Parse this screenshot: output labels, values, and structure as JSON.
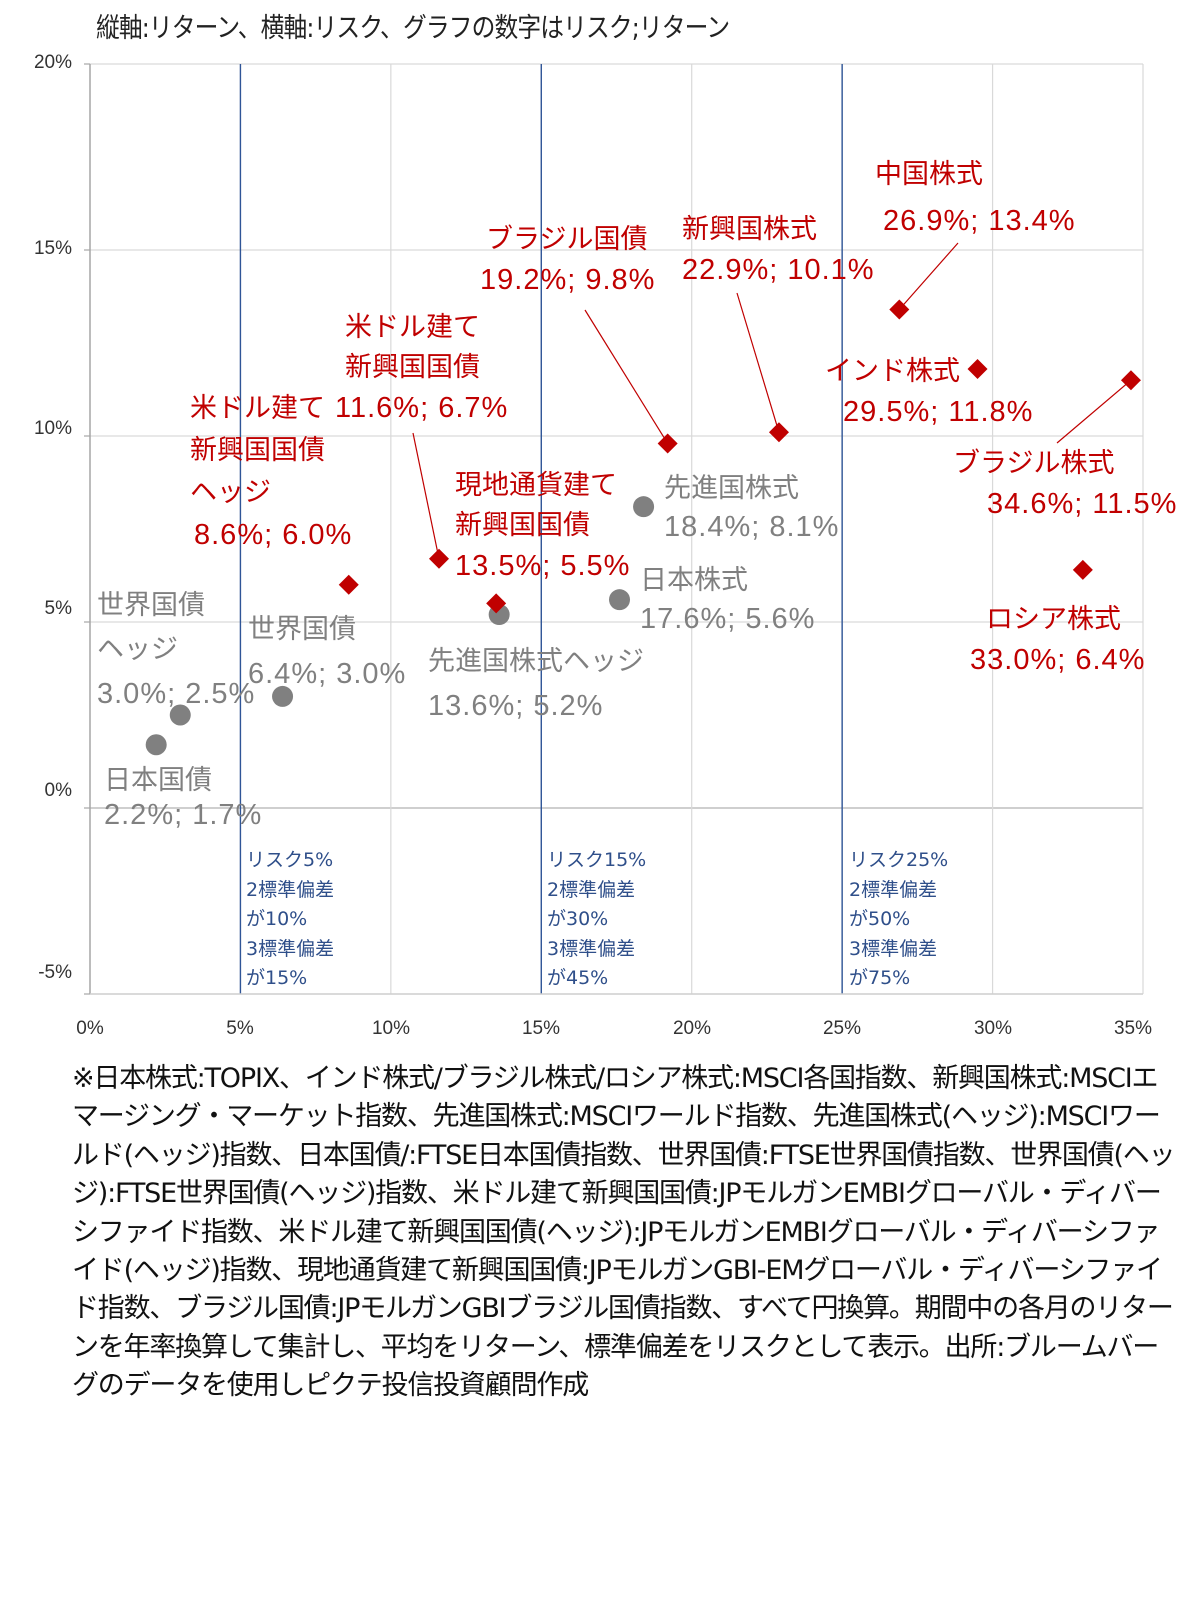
{
  "chart_data": {
    "type": "scatter",
    "title": "縦軸:リターン、横軸:リスク、グラフの数字はリスク;リターン",
    "xlabel": "リスク",
    "ylabel": "リターン",
    "xlim": [
      0,
      35
    ],
    "ylim": [
      -5,
      20
    ],
    "xticks": [
      "0%",
      "5%",
      "10%",
      "15%",
      "20%",
      "25%",
      "30%",
      "35%"
    ],
    "yticks": [
      "20%",
      "15%",
      "10%",
      "5%",
      "0%",
      "-5%"
    ],
    "grid": true,
    "colors": {
      "red_series": "#c00000",
      "gray_series": "#808080",
      "risk_lines": "#2f5597",
      "grid": "#d9d9d9",
      "axis": "#a6a6a6"
    },
    "series": [
      {
        "name": "gray",
        "marker": "circle",
        "points": [
          {
            "name": "日本国債",
            "x": 2.2,
            "y": 1.7,
            "label": "2.2%; 1.7%"
          },
          {
            "name": "世界国債ヘッジ",
            "name_lines": [
              "世界国債",
              "ヘッジ"
            ],
            "x": 3.0,
            "y": 2.5,
            "label": "3.0%; 2.5%"
          },
          {
            "name": "世界国債",
            "x": 6.4,
            "y": 3.0,
            "label": "6.4%; 3.0%"
          },
          {
            "name": "先進国株式ヘッジ",
            "x": 13.6,
            "y": 5.2,
            "label": "13.6%; 5.2%"
          },
          {
            "name": "日本株式",
            "x": 17.6,
            "y": 5.6,
            "label": "17.6%; 5.6%"
          },
          {
            "name": "先進国株式",
            "x": 18.4,
            "y": 8.1,
            "label": "18.4%; 8.1%"
          }
        ]
      },
      {
        "name": "red",
        "marker": "diamond",
        "points": [
          {
            "name": "米ドル建て新興国国債ヘッジ",
            "name_lines": [
              "米ドル建て",
              "新興国国債",
              "ヘッジ"
            ],
            "x": 8.6,
            "y": 6.0,
            "label": "8.6%; 6.0%"
          },
          {
            "name": "米ドル建て新興国国債",
            "name_lines": [
              "米ドル建て",
              "新興国国債"
            ],
            "x": 11.6,
            "y": 6.7,
            "label": "11.6%; 6.7%"
          },
          {
            "name": "現地通貨建て新興国国債",
            "name_lines": [
              "現地通貨建て",
              "新興国国債"
            ],
            "x": 13.5,
            "y": 5.5,
            "label": "13.5%; 5.5%"
          },
          {
            "name": "ブラジル国債",
            "x": 19.2,
            "y": 9.8,
            "label": "19.2%; 9.8%"
          },
          {
            "name": "新興国株式",
            "x": 22.9,
            "y": 10.1,
            "label": "22.9%; 10.1%"
          },
          {
            "name": "中国株式",
            "x": 26.9,
            "y": 13.4,
            "label": "26.9%; 13.4%"
          },
          {
            "name": "インド株式",
            "x": 29.5,
            "y": 11.8,
            "label": "29.5%; 11.8%"
          },
          {
            "name": "ブラジル株式",
            "x": 34.6,
            "y": 11.5,
            "label": "34.6%; 11.5%"
          },
          {
            "name": "ロシア株式",
            "x": 33.0,
            "y": 6.4,
            "label": "33.0%; 6.4%"
          }
        ]
      }
    ],
    "risk_lines": [
      {
        "x": 5,
        "lines": [
          "リスク5%",
          "2標準偏差",
          "が10%",
          "3標準偏差",
          "が15%"
        ]
      },
      {
        "x": 15,
        "lines": [
          "リスク15%",
          "2標準偏差",
          "が30%",
          "3標準偏差",
          "が45%"
        ]
      },
      {
        "x": 25,
        "lines": [
          "リスク25%",
          "2標準偏差",
          "が50%",
          "3標準偏差",
          "が75%"
        ]
      }
    ]
  },
  "footnote": "※日本株式:TOPIX、インド株式/ブラジル株式/ロシア株式:MSCI各国指数、新興国株式:MSCIエマージング・マーケット指数、先進国株式:MSCIワールド指数、先進国株式(ヘッジ):MSCIワールド(ヘッジ)指数、日本国債/:FTSE日本国債指数、世界国債:FTSE世界国債指数、世界国債(ヘッジ):FTSE世界国債(ヘッジ)指数、米ドル建て新興国国債:JPモルガンEMBIグローバル・ディバーシファイド指数、米ドル建て新興国国債(ヘッジ):JPモルガンEMBIグローバル・ディバーシファイド(ヘッジ)指数、現地通貨建て新興国国債:JPモルガンGBI-EMグローバル・ディバーシファイド指数、ブラジル国債:JPモルガンGBIブラジル国債指数、すべて円換算。期間中の各月のリターンを年率換算して集計し、平均をリターン、標準偏差をリスクとして表示。出所:ブルームバーグのデータを使用しピクテ投信投資顧問作成"
}
